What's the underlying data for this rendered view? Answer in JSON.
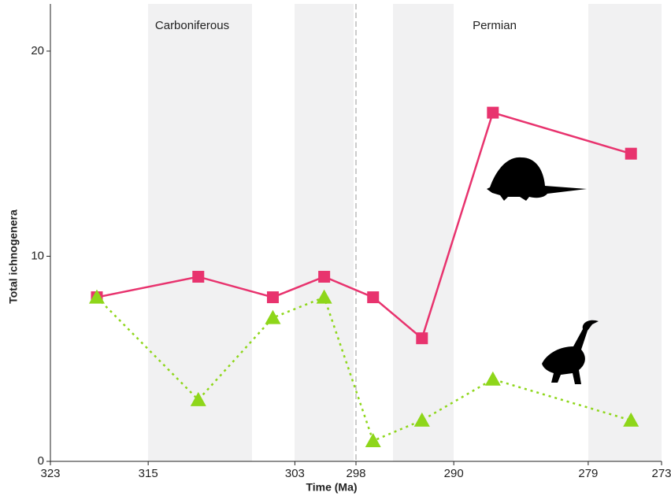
{
  "chart_data": {
    "type": "line",
    "ylabel": "Total ichnogenera",
    "xlabel": "Time (Ma)",
    "annotations": [
      "Carboniferous",
      "Permian"
    ],
    "x": [
      319.2,
      310.9,
      304.8,
      300.6,
      296.6,
      292.6,
      286.8,
      275.5
    ],
    "series": [
      {
        "color": "#e8336e",
        "marker": "square",
        "linestyle": "solid",
        "values": [
          8,
          9,
          8,
          9,
          8,
          6,
          17,
          15
        ]
      },
      {
        "color": "#8ed61a",
        "marker": "triangle",
        "linestyle": "dotted",
        "values": [
          8,
          3,
          7,
          8,
          1,
          2,
          4,
          2
        ]
      }
    ],
    "xlim": [
      323,
      273
    ],
    "xticks": [
      323,
      315,
      303,
      298,
      290,
      279,
      273
    ],
    "ylim": [
      0,
      22.3
    ],
    "yticks": [
      0,
      10,
      20
    ]
  }
}
